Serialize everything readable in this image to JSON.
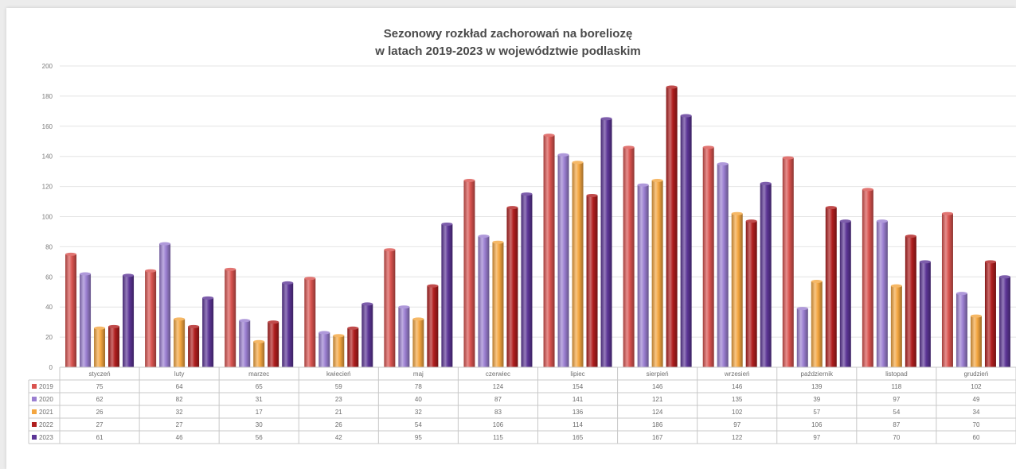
{
  "chart_data": {
    "type": "bar",
    "title": "Sezonowy rozkład zachorowań na boreliozę",
    "subtitle": "w latach 2019-2023 w województwie podlaskim",
    "xlabel": "",
    "ylabel": "",
    "ylim": [
      0,
      200
    ],
    "yticks": [
      "0",
      "20",
      "40",
      "60",
      "80",
      "100",
      "120",
      "140",
      "160",
      "180",
      "200"
    ],
    "grid": true,
    "legend": "data-table-left",
    "categories": [
      "styczeń",
      "luty",
      "marzec",
      "kwiecień",
      "maj",
      "czerwiec",
      "lipiec",
      "sierpień",
      "wrzesień",
      "październik",
      "listopad",
      "grudzień"
    ],
    "series": [
      {
        "name": "2019",
        "color": "#d9534f",
        "values": [
          75,
          64,
          65,
          59,
          78,
          124,
          154,
          146,
          146,
          139,
          118,
          102
        ]
      },
      {
        "name": "2020",
        "color": "#9b7fd1",
        "values": [
          62,
          82,
          31,
          23,
          40,
          87,
          141,
          121,
          135,
          39,
          97,
          49
        ]
      },
      {
        "name": "2021",
        "color": "#f4a640",
        "values": [
          26,
          32,
          17,
          21,
          32,
          83,
          136,
          124,
          102,
          57,
          54,
          34
        ]
      },
      {
        "name": "2022",
        "color": "#b01e1e",
        "values": [
          27,
          27,
          30,
          26,
          54,
          106,
          114,
          186,
          97,
          106,
          87,
          70
        ]
      },
      {
        "name": "2023",
        "color": "#5c3596",
        "values": [
          61,
          46,
          56,
          42,
          95,
          115,
          165,
          167,
          122,
          97,
          70,
          60
        ]
      }
    ]
  }
}
